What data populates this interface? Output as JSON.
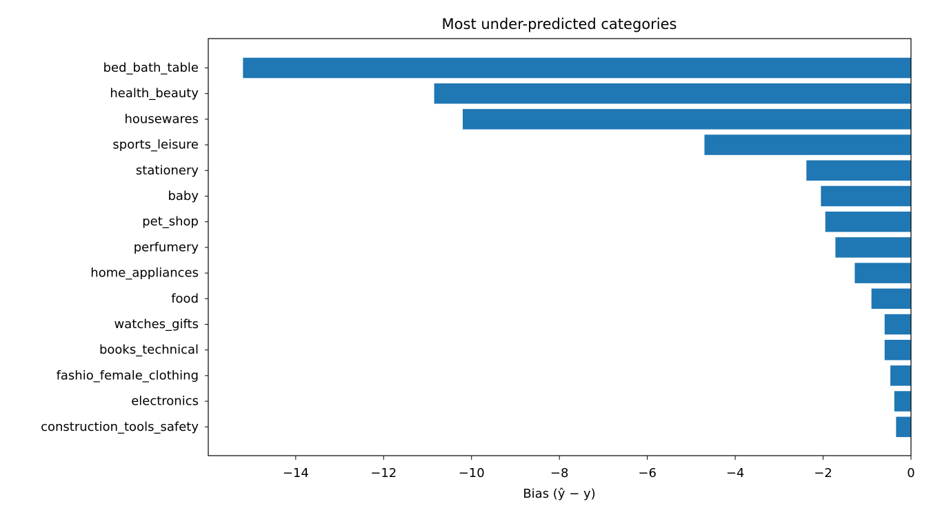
{
  "chart_data": {
    "type": "bar",
    "orientation": "horizontal",
    "title": "Most under-predicted categories",
    "xlabel": "Bias (ŷ − y)",
    "ylabel": "",
    "categories": [
      "bed_bath_table",
      "health_beauty",
      "housewares",
      "sports_leisure",
      "stationery",
      "baby",
      "pet_shop",
      "perfumery",
      "home_appliances",
      "food",
      "watches_gifts",
      "books_technical",
      "fashio_female_clothing",
      "electronics",
      "construction_tools_safety"
    ],
    "values": [
      -15.2,
      -10.85,
      -10.2,
      -4.7,
      -2.38,
      -2.05,
      -1.95,
      -1.72,
      -1.28,
      -0.9,
      -0.6,
      -0.6,
      -0.47,
      -0.38,
      -0.34
    ],
    "xlim": [
      -15.99,
      0
    ],
    "xticks": [
      -14,
      -12,
      -10,
      -8,
      -6,
      -4,
      -2,
      0
    ],
    "xtick_labels": [
      "−14",
      "−12",
      "−10",
      "−8",
      "−6",
      "−4",
      "−2",
      "0"
    ],
    "grid": false,
    "bar_color": "#1f77b4"
  }
}
